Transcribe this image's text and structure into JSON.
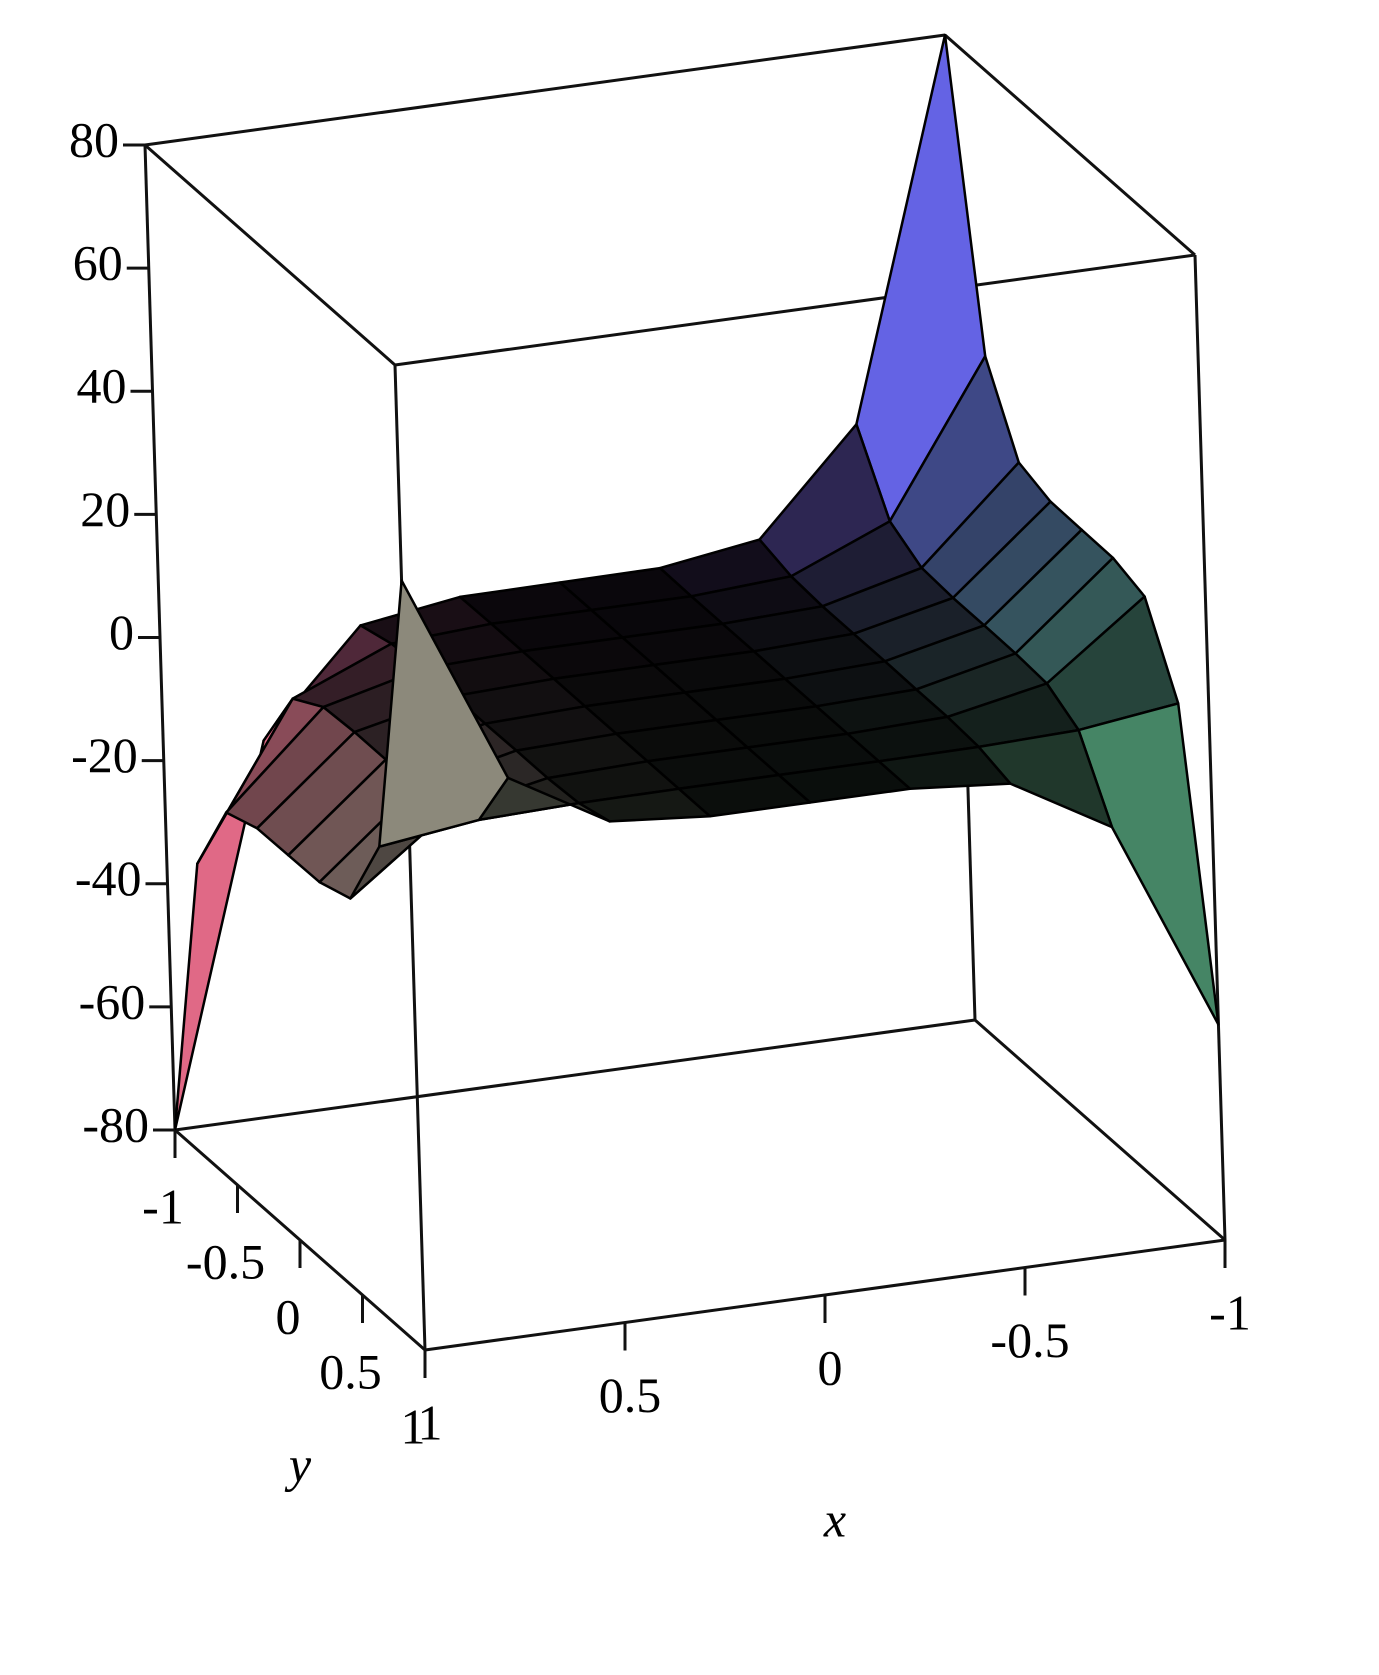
{
  "chart_data": {
    "type": "surface",
    "x": [
      -1,
      -0.75,
      -0.5,
      -0.25,
      0,
      0.25,
      0.5,
      0.75,
      1
    ],
    "y": [
      -1,
      -0.75,
      -0.5,
      -0.25,
      0,
      0.25,
      0.5,
      0.75,
      1
    ],
    "z": [
      [
        80,
        19.0,
        2.5,
        0.1,
        0,
        -0.1,
        -2.5,
        -19.0,
        -80
      ],
      [
        32.3,
        7.7,
        1.0,
        0.0,
        0,
        0.0,
        -1.0,
        -7.7,
        -32.3
      ],
      [
        19.5,
        4.6,
        0.6,
        0.0,
        0,
        0.0,
        -0.6,
        -4.6,
        -19.5
      ],
      [
        17.6,
        4.2,
        0.6,
        0.0,
        0,
        0.0,
        -0.6,
        -4.2,
        -17.6
      ],
      [
        17.5,
        4.2,
        0.6,
        0.0,
        0,
        0.0,
        -0.6,
        -4.2,
        -17.5
      ],
      [
        17.4,
        4.1,
        0.5,
        0.0,
        0,
        0.0,
        -0.5,
        -4.1,
        -17.4
      ],
      [
        15.6,
        3.7,
        0.5,
        0.0,
        0,
        0.0,
        -0.5,
        -3.7,
        -15.6
      ],
      [
        2.7,
        0.6,
        0.1,
        0.0,
        0,
        0.0,
        -0.1,
        -0.6,
        -2.7
      ],
      [
        -45,
        -10.7,
        -1.4,
        0.0,
        0,
        0.0,
        1.4,
        10.7,
        45
      ]
    ],
    "xlim": [
      -1,
      1
    ],
    "ylim": [
      -1,
      1
    ],
    "zlim": [
      -80,
      80
    ],
    "xticks": [
      -1,
      -0.5,
      0,
      0.5,
      1
    ],
    "yticks": [
      -1,
      -0.5,
      0,
      0.5,
      1
    ],
    "zticks": [
      -80,
      -60,
      -40,
      -20,
      0,
      20,
      40,
      60,
      80
    ],
    "x_label": "x",
    "y_label": "y",
    "surface_colors": {
      "back": "#5a5af0",
      "front": "#fffae0",
      "left": "#e8607a",
      "right": "#70f0a8"
    }
  }
}
